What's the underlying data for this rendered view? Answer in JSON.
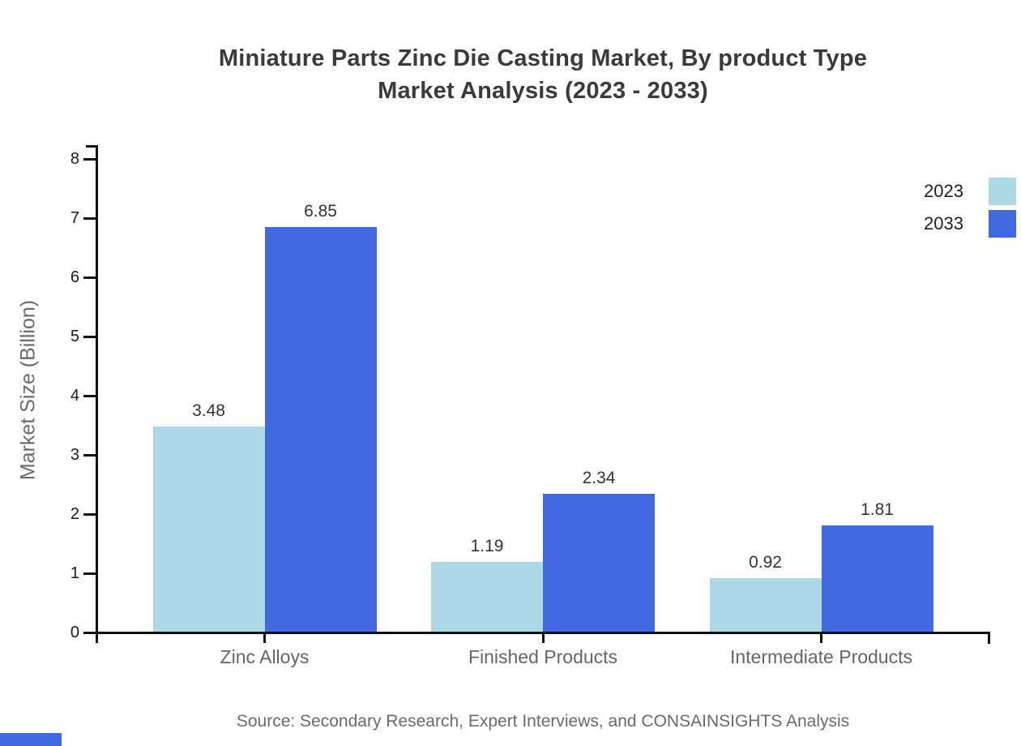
{
  "title": {
    "line1": "Miniature Parts Zinc Die Casting Market, By product Type",
    "line2": "Market Analysis (2023 - 2033)"
  },
  "source": "Source: Secondary Research, Expert Interviews, and CONSAINSIGHTS Analysis",
  "colors": {
    "series_2023": "#ADD8E6",
    "series_2033": "#4169E1",
    "axis": "#111111",
    "tick_label": "#1c1c1c",
    "category_label": "#666666",
    "value_label": "#333333",
    "title_text": "#3a3a3a",
    "muted_text": "#6b6b6b",
    "brand": "#4169E1"
  },
  "legend": {
    "items": [
      {
        "label": "2023",
        "color": "#ADD8E6"
      },
      {
        "label": "2033",
        "color": "#4169E1"
      }
    ]
  },
  "chart_data": {
    "type": "bar",
    "title": "Miniature Parts Zinc Die Casting Market, By product Type Market Analysis (2023 - 2033)",
    "categories": [
      "Zinc Alloys",
      "Finished Products",
      "Intermediate Products"
    ],
    "series": [
      {
        "name": "2023",
        "color": "#ADD8E6",
        "values": [
          3.48,
          1.19,
          0.92
        ]
      },
      {
        "name": "2033",
        "color": "#4169E1",
        "values": [
          6.85,
          2.34,
          1.81
        ]
      }
    ],
    "xlabel": "",
    "ylabel": "Market Size (Billion)",
    "ylim": [
      0,
      8
    ],
    "yticks": [
      0,
      1,
      2,
      3,
      4,
      5,
      6,
      7,
      8
    ],
    "grid": false,
    "legend_position": "upper-right",
    "value_labels_decimals": 2,
    "source": "Source: Secondary Research, Expert Interviews, and CONSAINSIGHTS Analysis"
  }
}
